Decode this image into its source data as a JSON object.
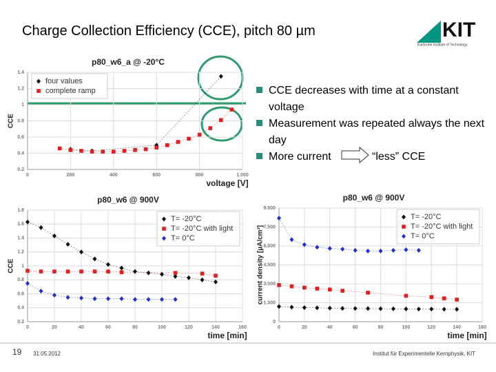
{
  "slide": {
    "title": "Charge Collection Efficiency (CCE), pitch 80 µm",
    "logo": "KIT",
    "logo_sub": "Karlsruhe Institute of Technology",
    "bullets": [
      "CCE decreases with time at a constant voltage",
      "Measurement was repeated always the next day"
    ],
    "bullet_arrow": {
      "from": "More current",
      "to": "“less” CCE"
    },
    "footer": {
      "page": "19",
      "date": "31.05.2012",
      "institute": "Institut für Experimentelle Kernphysik, KIT"
    }
  },
  "chart_data": [
    {
      "type": "scatter",
      "title": "p80_w6_a @ -20°C",
      "x_label": "voltage [V]",
      "y_label": "CCE",
      "xlim": [
        0,
        1000
      ],
      "xticks": [
        0,
        200,
        400,
        600,
        800,
        {
          "value": 1000,
          "label": "1.000"
        }
      ],
      "ylim": [
        0.2,
        1.4
      ],
      "yticks": [
        0.2,
        0.4,
        0.6,
        0.8,
        1,
        1.2,
        1.4
      ],
      "grid": true,
      "legend": "upper left",
      "series": [
        {
          "name": "four values",
          "color": "#111111",
          "marker": "diamond",
          "x": [
            200,
            300,
            600,
            900
          ],
          "values": [
            0.45,
            0.43,
            0.5,
            1.35
          ]
        },
        {
          "name": "complete ramp",
          "color": "#e02020",
          "marker": "square",
          "x": [
            150,
            200,
            250,
            300,
            350,
            400,
            450,
            500,
            550,
            600,
            650,
            700,
            750,
            800,
            850,
            900,
            950
          ],
          "values": [
            0.46,
            0.44,
            0.43,
            0.42,
            0.42,
            0.42,
            0.43,
            0.44,
            0.45,
            0.47,
            0.5,
            0.54,
            0.58,
            0.63,
            0.71,
            0.81,
            0.94
          ]
        }
      ]
    },
    {
      "type": "scatter",
      "title": "p80_w6 @ 900V",
      "x_label": "time [min]",
      "y_label": "CCE",
      "xlim": [
        0,
        160
      ],
      "xticks": [
        0,
        20,
        40,
        60,
        80,
        100,
        120,
        140,
        160
      ],
      "ylim": [
        0.2,
        1.8
      ],
      "yticks": [
        0.2,
        0.4,
        0.6,
        0.8,
        1,
        1.2,
        1.4,
        1.6,
        1.8
      ],
      "grid": true,
      "legend": "upper right",
      "series": [
        {
          "name": "T= -20°C",
          "color": "#111111",
          "marker": "diamond",
          "x": [
            0,
            10,
            20,
            30,
            40,
            50,
            60,
            70,
            80,
            90,
            100,
            110,
            120,
            130,
            140
          ],
          "values": [
            1.63,
            1.55,
            1.43,
            1.31,
            1.2,
            1.1,
            1.02,
            0.97,
            0.92,
            0.9,
            0.88,
            0.85,
            0.83,
            0.8,
            0.77
          ]
        },
        {
          "name": "T= -20°C with light",
          "color": "#e02020",
          "marker": "square",
          "x": [
            0,
            10,
            20,
            30,
            40,
            50,
            60,
            70,
            110,
            130,
            140
          ],
          "values": [
            0.93,
            0.92,
            0.92,
            0.92,
            0.92,
            0.92,
            0.92,
            0.91,
            0.9,
            0.89,
            0.86
          ]
        },
        {
          "name": "T=  0°C",
          "color": "#2030d0",
          "marker": "diamond",
          "x": [
            0,
            10,
            20,
            30,
            40,
            50,
            60,
            70,
            80,
            90,
            100,
            110
          ],
          "values": [
            0.75,
            0.64,
            0.58,
            0.55,
            0.54,
            0.53,
            0.53,
            0.53,
            0.52,
            0.52,
            0.52,
            0.52
          ]
        }
      ]
    },
    {
      "type": "scatter",
      "title": "p80_w6 @ 900V",
      "x_label": "time [min]",
      "y_label": "current density [µA/cm³]",
      "xlim": [
        0,
        160
      ],
      "xticks": [
        0,
        20,
        40,
        60,
        80,
        100,
        120,
        140,
        160
      ],
      "ylim": [
        0,
        9
      ],
      "yticks": [
        0,
        {
          "value": 1.5,
          "label": "1.500"
        },
        {
          "value": 3,
          "label": "3.000"
        },
        {
          "value": 4.5,
          "label": "4.500"
        },
        {
          "value": 6,
          "label": "6.000"
        },
        {
          "value": 7.5,
          "label": "7.500"
        },
        {
          "value": 9,
          "label": "9.000"
        }
      ],
      "grid": true,
      "legend": "upper right",
      "series": [
        {
          "name": "T= -20°C",
          "color": "#111111",
          "marker": "diamond",
          "x": [
            0,
            10,
            20,
            30,
            40,
            50,
            60,
            70,
            80,
            90,
            100,
            110,
            120,
            130,
            140
          ],
          "values": [
            1.2,
            1.15,
            1.12,
            1.1,
            1.08,
            1.06,
            1.05,
            1.04,
            1.03,
            1.02,
            1.01,
            1.0,
            1.0,
            0.99,
            0.98
          ]
        },
        {
          "name": "T= -20°C with light",
          "color": "#e02020",
          "marker": "square",
          "x": [
            0,
            10,
            20,
            30,
            40,
            50,
            70,
            100,
            120,
            130,
            140
          ],
          "values": [
            2.9,
            2.8,
            2.7,
            2.62,
            2.55,
            2.45,
            2.3,
            2.05,
            1.95,
            1.85,
            1.75
          ]
        },
        {
          "name": "T=  0°C",
          "color": "#2030d0",
          "marker": "diamond",
          "x": [
            0,
            10,
            20,
            30,
            40,
            50,
            60,
            70,
            80,
            90,
            100,
            110
          ],
          "values": [
            8.2,
            6.5,
            6.1,
            5.9,
            5.8,
            5.75,
            5.65,
            5.6,
            5.6,
            5.65,
            5.7,
            5.65
          ]
        }
      ]
    }
  ]
}
